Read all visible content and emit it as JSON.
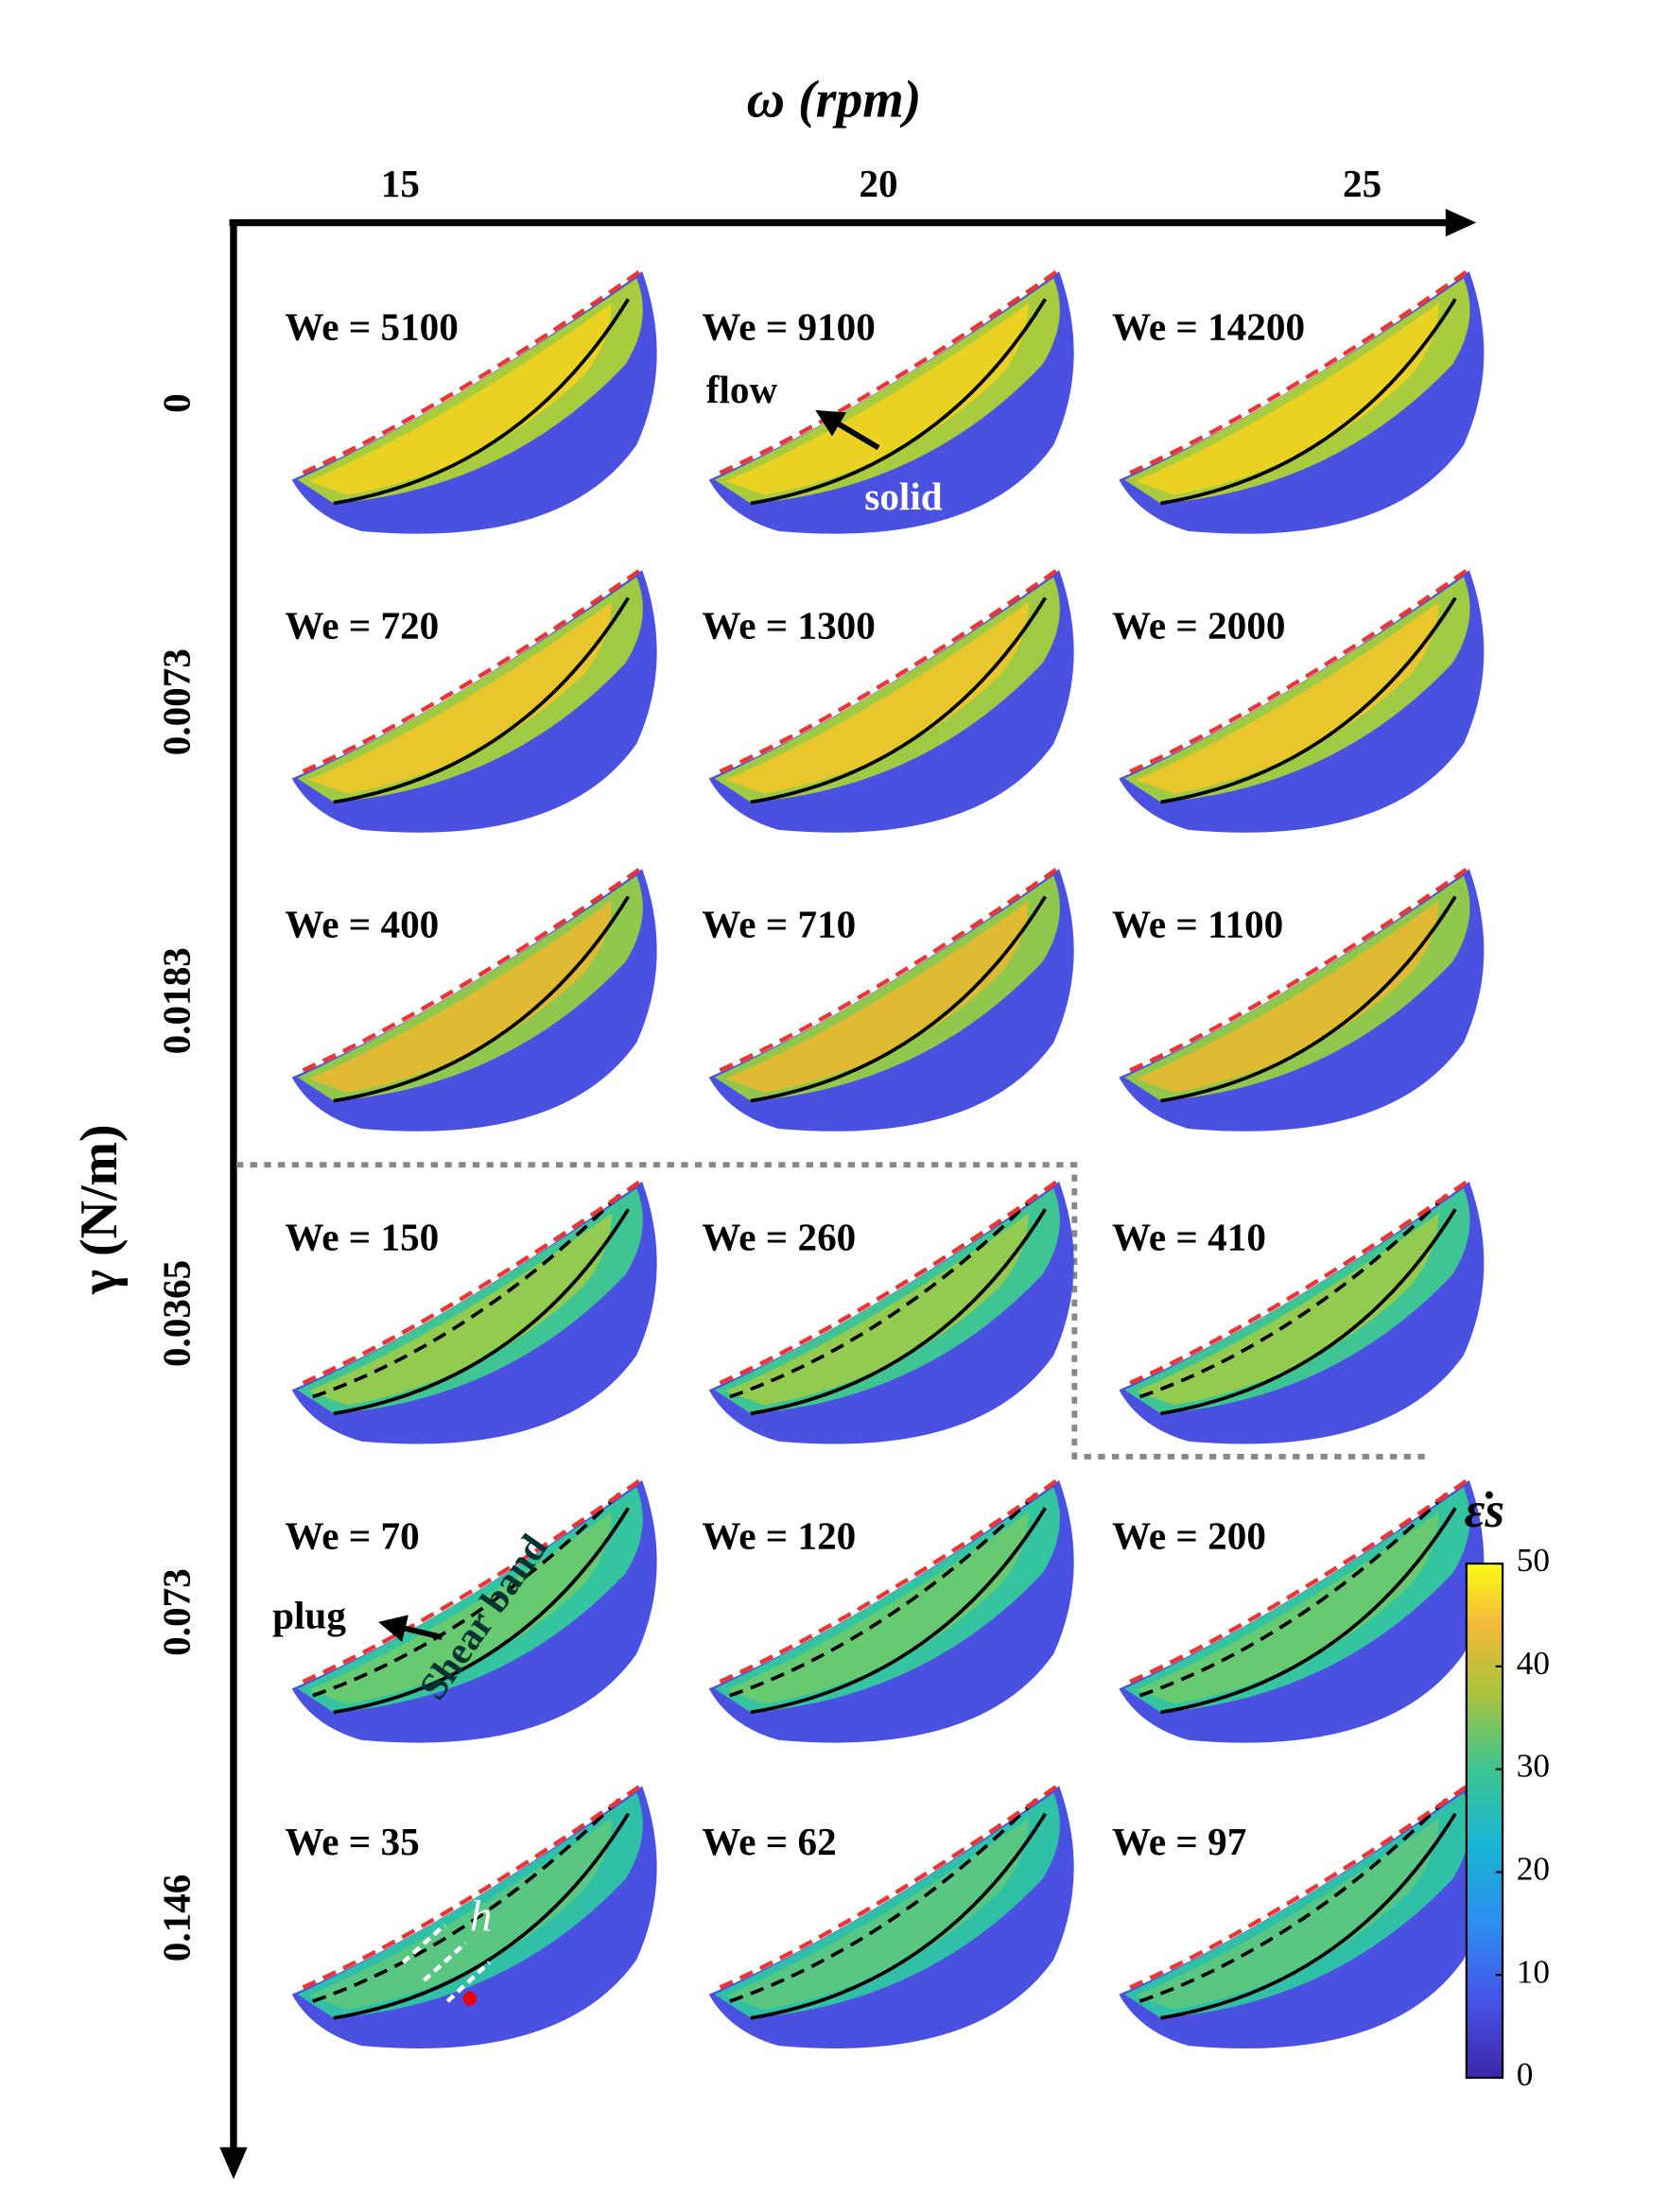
{
  "x_axis": {
    "label": "ω (rpm)",
    "ticks": [
      "15",
      "20",
      "25"
    ]
  },
  "y_axis": {
    "label": "γ (N/m)",
    "ticks": [
      "0",
      "0.0073",
      "0.0183",
      "0.0365",
      "0.073",
      "0.146"
    ]
  },
  "panels": [
    [
      "We = 5100",
      "We = 9100",
      "We = 14200"
    ],
    [
      "We = 720",
      "We = 1300",
      "We = 2000"
    ],
    [
      "We = 400",
      "We = 710",
      "We = 1100"
    ],
    [
      "We = 150",
      "We = 260",
      "We = 410"
    ],
    [
      "We = 70",
      "We = 120",
      "We = 200"
    ],
    [
      "We = 35",
      "We = 62",
      "We = 97"
    ]
  ],
  "annotations": {
    "flow": "flow",
    "solid": "solid",
    "plug": "plug",
    "shear_band": "Shear band",
    "h": "h"
  },
  "colorbar": {
    "label": "ε̇s",
    "range": [
      0,
      50
    ],
    "ticks": [
      0,
      10,
      20,
      30,
      40,
      50
    ]
  }
}
